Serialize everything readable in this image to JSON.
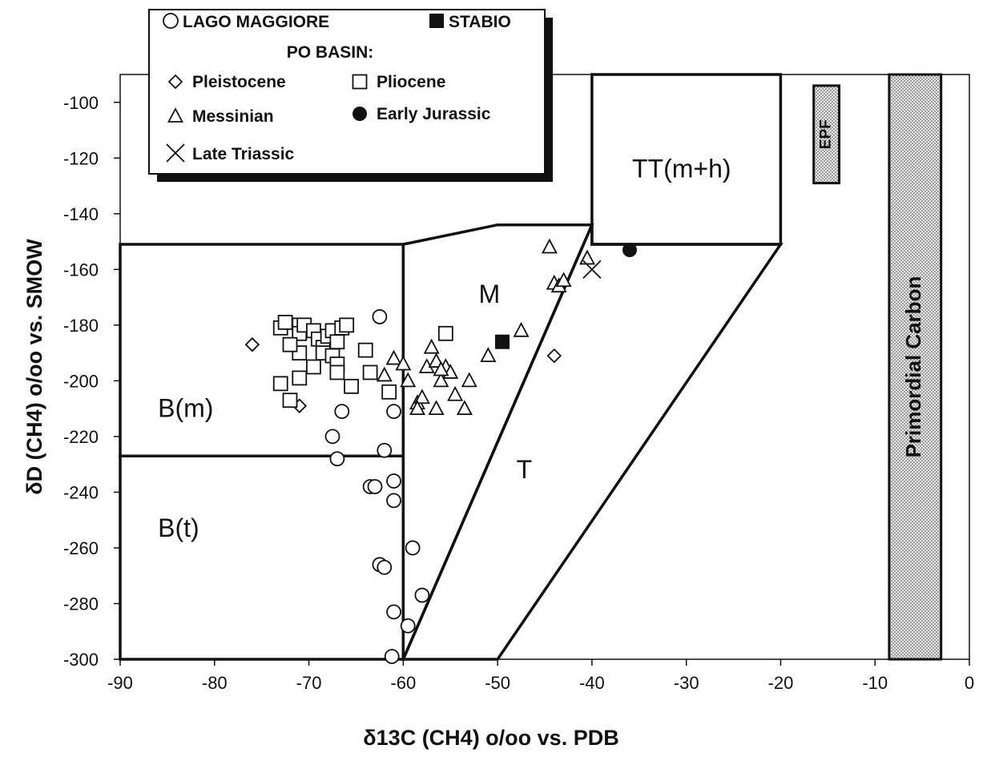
{
  "chart_data": {
    "type": "scatter",
    "xlabel": "δ13C (CH4) o/oo vs. PDB",
    "ylabel": "δD (CH4) o/oo vs. SMOW",
    "xlim": [
      -90,
      0
    ],
    "ylim": [
      -300,
      -90
    ],
    "x_ticks": [
      "-90",
      "-80",
      "-70",
      "-60",
      "-50",
      "-40",
      "-30",
      "-20",
      "-10",
      "0"
    ],
    "y_ticks": [
      "-100",
      "-120",
      "-140",
      "-160",
      "-180",
      "-200",
      "-220",
      "-240",
      "-260",
      "-280",
      "-300"
    ],
    "grid": false,
    "legend_position": "top-left",
    "legend": {
      "lago": "LAGO MAGGIORE",
      "stabio": "STABIO",
      "po_header": "PO BASIN:",
      "pleistocene": "Pleistocene",
      "pliocene": "Pliocene",
      "messinian": "Messinian",
      "jurassic": "Early Jurassic",
      "triassic": "Late Triassic"
    },
    "fields": [
      {
        "label": "B(m)",
        "label_at": [
          -86,
          -213
        ],
        "polygon": [
          [
            -90,
            -151
          ],
          [
            -60,
            -151
          ],
          [
            -60,
            -227
          ],
          [
            -90,
            -227
          ]
        ]
      },
      {
        "label": "B(t)",
        "label_at": [
          -86,
          -256
        ],
        "polygon": [
          [
            -90,
            -227
          ],
          [
            -60,
            -227
          ],
          [
            -60,
            -300
          ],
          [
            -90,
            -300
          ]
        ]
      },
      {
        "label": "M",
        "label_at": [
          -52,
          -172
        ],
        "polygon": [
          [
            -60,
            -151
          ],
          [
            -50,
            -144
          ],
          [
            -40,
            -144
          ],
          [
            -60,
            -300
          ]
        ]
      },
      {
        "label": "T",
        "label_at": [
          -48,
          -235
        ],
        "polygon": [
          [
            -40,
            -144
          ],
          [
            -40,
            -151
          ],
          [
            -20,
            -151
          ],
          [
            -50,
            -300
          ],
          [
            -60,
            -300
          ]
        ]
      },
      {
        "label": "TT(m+h)",
        "label_at": [
          -30.5,
          -127
        ],
        "polygon": [
          [
            -40,
            -90
          ],
          [
            -20,
            -90
          ],
          [
            -20,
            -151
          ],
          [
            -40,
            -151
          ]
        ]
      }
    ],
    "vertical_bands": [
      {
        "label": "EPF",
        "x": [
          -16.5,
          -13.8
        ],
        "y": [
          -94,
          -129
        ]
      },
      {
        "label": "Primordial Carbon",
        "x": [
          -8.5,
          -3
        ],
        "y": [
          -90,
          -300
        ]
      }
    ],
    "series": [
      {
        "name": "LAGO MAGGIORE",
        "marker": "circle-open",
        "points": [
          [
            -62.5,
            -177
          ],
          [
            -66.5,
            -211
          ],
          [
            -61,
            -211
          ],
          [
            -67.5,
            -220
          ],
          [
            -62,
            -225
          ],
          [
            -67,
            -228
          ],
          [
            -63.5,
            -238
          ],
          [
            -63,
            -238
          ],
          [
            -61,
            -236
          ],
          [
            -61,
            -243
          ],
          [
            -59,
            -260
          ],
          [
            -62.5,
            -266
          ],
          [
            -62,
            -267
          ],
          [
            -58,
            -277
          ],
          [
            -59.5,
            -288
          ],
          [
            -61,
            -283
          ],
          [
            -61.2,
            -299
          ]
        ]
      },
      {
        "name": "STABIO",
        "marker": "square-filled",
        "points": [
          [
            -49.5,
            -186
          ]
        ]
      },
      {
        "name": "Pleistocene",
        "marker": "diamond-open",
        "points": [
          [
            -76,
            -187
          ],
          [
            -71,
            -209
          ],
          [
            -44,
            -191
          ]
        ]
      },
      {
        "name": "Pliocene",
        "marker": "square-open",
        "points": [
          [
            -73,
            -181
          ],
          [
            -72.5,
            -179
          ],
          [
            -71,
            -180
          ],
          [
            -71,
            -183
          ],
          [
            -70.5,
            -180
          ],
          [
            -69.5,
            -182
          ],
          [
            -69,
            -185
          ],
          [
            -68.5,
            -188
          ],
          [
            -68,
            -184
          ],
          [
            -67.5,
            -182
          ],
          [
            -67,
            -186
          ],
          [
            -66.5,
            -181
          ],
          [
            -66,
            -180
          ],
          [
            -68.5,
            -190
          ],
          [
            -67.5,
            -191
          ],
          [
            -67,
            -194
          ],
          [
            -67,
            -197
          ],
          [
            -71,
            -190
          ],
          [
            -72,
            -187
          ],
          [
            -69.5,
            -195
          ],
          [
            -64,
            -189
          ],
          [
            -63.5,
            -197
          ],
          [
            -61.5,
            -204
          ],
          [
            -65.5,
            -202
          ],
          [
            -71,
            -199
          ],
          [
            -73,
            -201
          ],
          [
            -72,
            -207
          ],
          [
            -55.5,
            -183
          ]
        ]
      },
      {
        "name": "Messinian",
        "marker": "triangle-open",
        "points": [
          [
            -62,
            -198
          ],
          [
            -61,
            -192
          ],
          [
            -60,
            -194
          ],
          [
            -59.5,
            -200
          ],
          [
            -58.5,
            -208
          ],
          [
            -58,
            -206
          ],
          [
            -57.5,
            -195
          ],
          [
            -57,
            -188
          ],
          [
            -56.5,
            -193
          ],
          [
            -56,
            -200
          ],
          [
            -55.5,
            -195
          ],
          [
            -55,
            -197
          ],
          [
            -54.5,
            -205
          ],
          [
            -53.5,
            -210
          ],
          [
            -53,
            -200
          ],
          [
            -56.5,
            -210
          ],
          [
            -58.5,
            -210
          ],
          [
            -51,
            -191
          ],
          [
            -47.5,
            -182
          ],
          [
            -44.5,
            -152
          ],
          [
            -44,
            -165
          ],
          [
            -43.5,
            -166
          ],
          [
            -43,
            -164
          ],
          [
            -40.5,
            -156
          ],
          [
            -56,
            -196
          ]
        ]
      },
      {
        "name": "Early Jurassic",
        "marker": "circle-filled",
        "points": [
          [
            -36,
            -153
          ]
        ]
      },
      {
        "name": "Late Triassic",
        "marker": "cross",
        "points": [
          [
            -40,
            -160
          ]
        ]
      }
    ]
  }
}
